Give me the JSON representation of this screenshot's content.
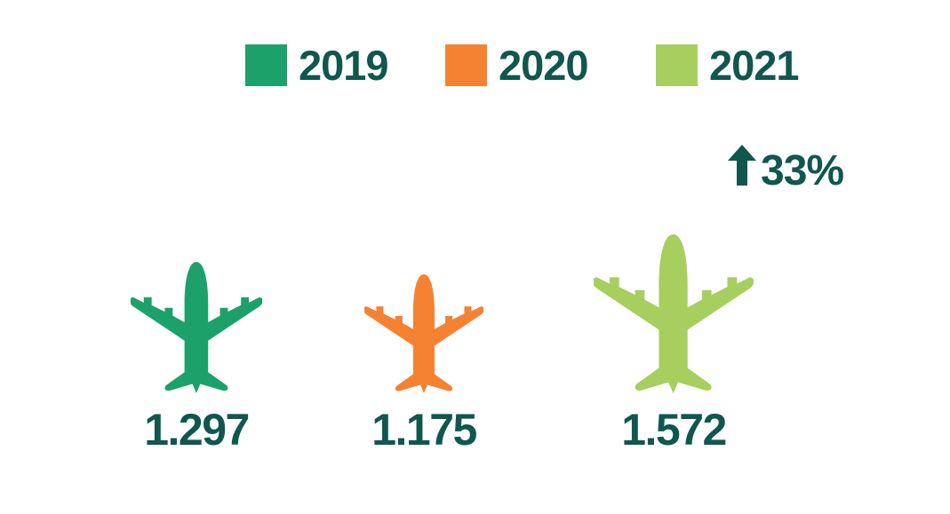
{
  "colors": {
    "text": "#10574e",
    "y2019": "#1da16a",
    "y2020": "#f58233",
    "y2021": "#a6cf5f"
  },
  "chart_data": {
    "type": "bar",
    "categories": [
      "2019",
      "2020",
      "2021"
    ],
    "values": [
      1.297,
      1.175,
      1.572
    ],
    "value_labels": [
      "1.297",
      "1.175",
      "1.572"
    ],
    "title": "",
    "xlabel": "",
    "ylabel": "",
    "legend": [
      "2019",
      "2020",
      "2021"
    ],
    "legend_position": "top",
    "annotation": {
      "text": "33%",
      "icon": "arrow-up-icon"
    },
    "marker": "airplane-icon"
  }
}
